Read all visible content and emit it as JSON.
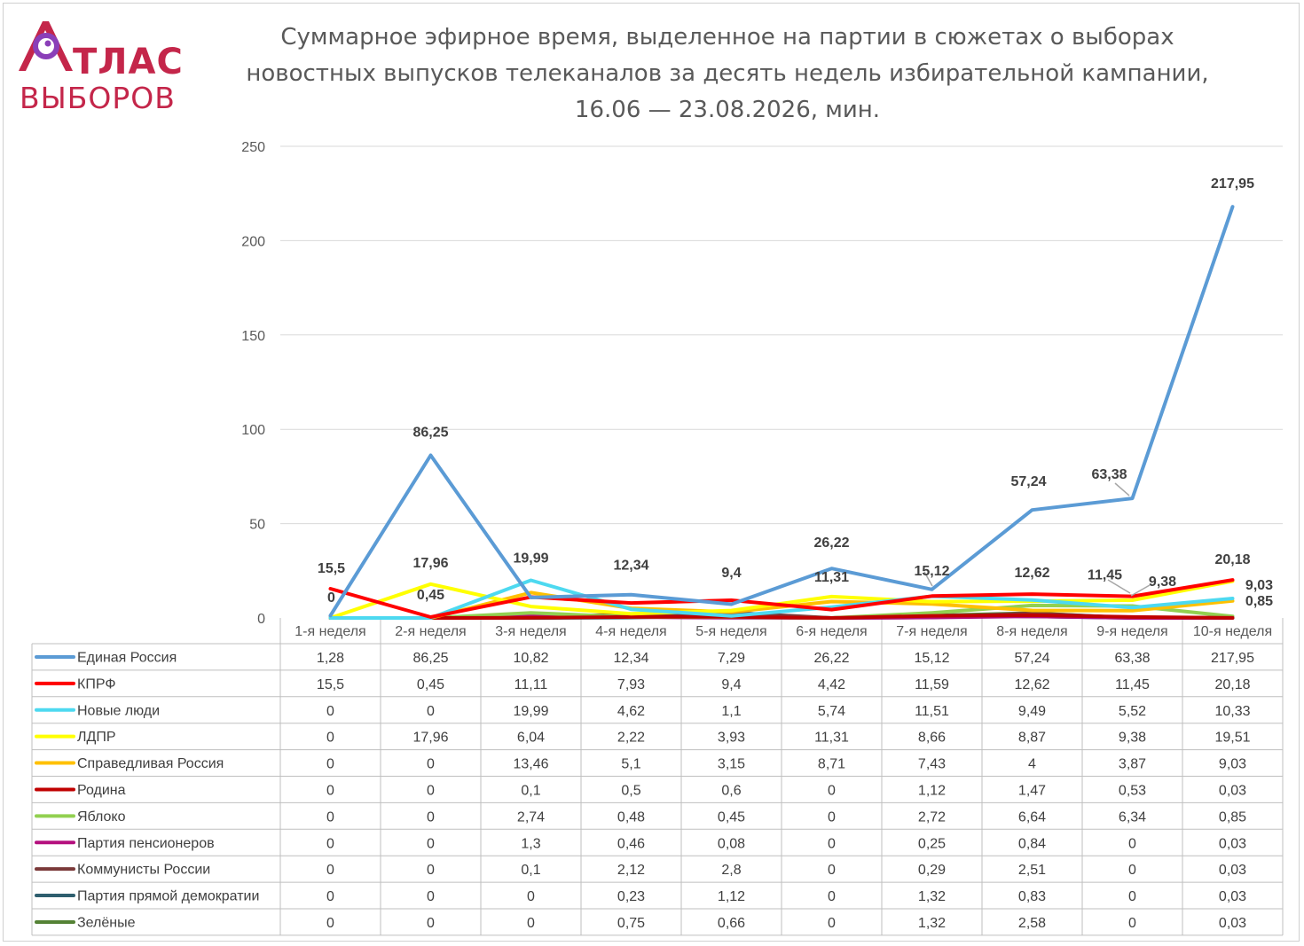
{
  "logo": {
    "line1": "ТЛАС",
    "line2": "ВЫБОРОВ"
  },
  "chart_data": {
    "type": "line",
    "title": [
      "Суммарное эфирное время, выделенное на партии в сюжетах о выборах",
      "новостных выпусков телеканалов за десять недель избирательной кампании,",
      "16.06 — 23.08.2026, мин."
    ],
    "categories": [
      "1-я неделя",
      "2-я неделя",
      "3-я неделя",
      "4-я неделя",
      "5-я неделя",
      "6-я неделя",
      "7-я неделя",
      "8-я неделя",
      "9-я неделя",
      "10-я неделя"
    ],
    "ylim": [
      0,
      250
    ],
    "yticks": [
      0,
      50,
      100,
      150,
      200,
      250
    ],
    "grid": true,
    "legend": "data-table",
    "series": [
      {
        "name": "Единая Россия",
        "color": "#5b9bd5",
        "values": [
          "1,28",
          "86,25",
          "10,82",
          "12,34",
          "7,29",
          "26,22",
          "15,12",
          "57,24",
          "63,38",
          "217,95"
        ]
      },
      {
        "name": "КПРФ",
        "color": "#ff0000",
        "values": [
          "15,5",
          "0,45",
          "11,11",
          "7,93",
          "9,4",
          "4,42",
          "11,59",
          "12,62",
          "11,45",
          "20,18"
        ]
      },
      {
        "name": "Новые люди",
        "color": "#4dd9f0",
        "values": [
          "0",
          "0",
          "19,99",
          "4,62",
          "1,1",
          "5,74",
          "11,51",
          "9,49",
          "5,52",
          "10,33"
        ]
      },
      {
        "name": "ЛДПР",
        "color": "#ffff00",
        "values": [
          "0",
          "17,96",
          "6,04",
          "2,22",
          "3,93",
          "11,31",
          "8,66",
          "8,87",
          "9,38",
          "19,51"
        ]
      },
      {
        "name": "Справедливая Россия",
        "color": "#ffc000",
        "values": [
          "0",
          "0",
          "13,46",
          "5,1",
          "3,15",
          "8,71",
          "7,43",
          "4",
          "3,87",
          "9,03"
        ]
      },
      {
        "name": "Родина",
        "color": "#c00000",
        "values": [
          "0",
          "0",
          "0,1",
          "0,5",
          "0,6",
          "0",
          "1,12",
          "1,47",
          "0,53",
          "0,03"
        ]
      },
      {
        "name": "Яблоко",
        "color": "#92d050",
        "values": [
          "0",
          "0",
          "2,74",
          "0,48",
          "0,45",
          "0",
          "2,72",
          "6,64",
          "6,34",
          "0,85"
        ]
      },
      {
        "name": "Партия пенсионеров",
        "color": "#b4107e",
        "values": [
          "0",
          "0",
          "1,3",
          "0,46",
          "0,08",
          "0",
          "0,25",
          "0,84",
          "0",
          "0,03"
        ]
      },
      {
        "name": "Коммунисты России",
        "color": "#7b3a3a",
        "values": [
          "0",
          "0",
          "0,1",
          "2,12",
          "2,8",
          "0",
          "0,29",
          "2,51",
          "0",
          "0,03"
        ]
      },
      {
        "name": "Партия прямой демократии",
        "color": "#2e5e6e",
        "values": [
          "0",
          "0",
          "0",
          "0,23",
          "1,12",
          "0",
          "1,32",
          "0,83",
          "0",
          "0,03"
        ]
      },
      {
        "name": "Зелёные",
        "color": "#548235",
        "values": [
          "0",
          "0",
          "0",
          "0,75",
          "0,66",
          "0",
          "1,32",
          "2,58",
          "0",
          "0,03"
        ]
      }
    ],
    "data_labels": [
      {
        "text": "15,5",
        "x": "1-я неделя",
        "y": 15.5
      },
      {
        "text": "0",
        "x": "1-я неделя",
        "y": 0
      },
      {
        "text": "86,25",
        "x": "2-я неделя",
        "y": 86.25
      },
      {
        "text": "17,96",
        "x": "2-я неделя",
        "y": 17.96
      },
      {
        "text": "0,45",
        "x": "2-я неделя",
        "y": 0.45
      },
      {
        "text": "19,99",
        "x": "3-я неделя",
        "y": 19.99
      },
      {
        "text": "12,34",
        "x": "4-я неделя",
        "y": 12.34
      },
      {
        "text": "9,4",
        "x": "5-я неделя",
        "y": 9.4
      },
      {
        "text": "26,22",
        "x": "6-я неделя",
        "y": 26.22
      },
      {
        "text": "11,31",
        "x": "6-я неделя",
        "y": 11.31
      },
      {
        "text": "15,12",
        "x": "7-я неделя",
        "y": 15.12
      },
      {
        "text": "57,24",
        "x": "8-я неделя",
        "y": 57.24
      },
      {
        "text": "12,62",
        "x": "8-я неделя",
        "y": 12.62
      },
      {
        "text": "63,38",
        "x": "9-я неделя",
        "y": 63.38
      },
      {
        "text": "11,45",
        "x": "9-я неделя",
        "y": 11.45
      },
      {
        "text": "9,38",
        "x": "9-я неделя",
        "y": 9.38
      },
      {
        "text": "217,95",
        "x": "10-я неделя",
        "y": 217.95
      },
      {
        "text": "20,18",
        "x": "10-я неделя",
        "y": 20.18
      },
      {
        "text": "9,03",
        "x": "10-я неделя",
        "y": 9.03
      },
      {
        "text": "0,85",
        "x": "10-я неделя",
        "y": 0.85
      }
    ]
  }
}
